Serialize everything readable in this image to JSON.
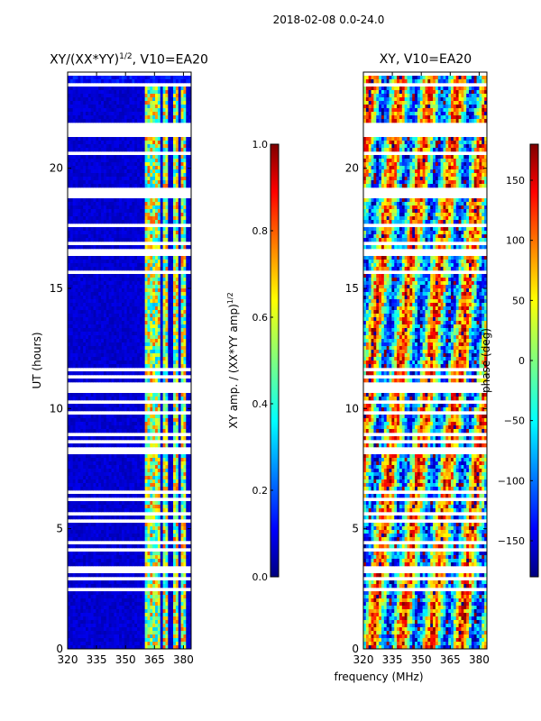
{
  "figure": {
    "title": "2018-02-08 0.0-24.0"
  },
  "chart_data": [
    {
      "type": "heatmap",
      "title": "XY/(XX*YY)",
      "title_power": "1/2",
      "title_suffix": ", V10=EA20",
      "xlabel": "",
      "ylabel": "UT (hours)",
      "xlim": [
        320,
        384
      ],
      "ylim": [
        0,
        24
      ],
      "xticks": [
        "320",
        "335",
        "350",
        "365",
        "380"
      ],
      "yticks": [
        "0",
        "5",
        "10",
        "15",
        "20"
      ],
      "colorbar": {
        "label": "XY amp. / (XX*YY amp)",
        "label_power": "1/2",
        "range": [
          0.0,
          1.0
        ],
        "ticks": [
          "0.0",
          "0.2",
          "0.4",
          "0.6",
          "0.8",
          "1.0"
        ],
        "colormap": "jet"
      },
      "description_values": {
        "background_level": 0.05,
        "band_centers_mhz": [
          362,
          366,
          371,
          376,
          380
        ],
        "band_level_range": [
          0.3,
          0.8
        ]
      }
    },
    {
      "type": "heatmap",
      "title": "XY, V10=EA20",
      "xlabel": "frequency (MHz)",
      "ylabel": "",
      "xlim": [
        320,
        384
      ],
      "ylim": [
        0,
        24
      ],
      "xticks": [
        "320",
        "335",
        "350",
        "365",
        "380"
      ],
      "yticks": [
        "0",
        "5",
        "10",
        "15",
        "20"
      ],
      "colorbar": {
        "label": "phase (deg)",
        "range": [
          -180,
          180
        ],
        "ticks": [
          "−150",
          "−100",
          "−50",
          "0",
          "50",
          "100",
          "150"
        ],
        "tick_values": [
          -150,
          -100,
          -50,
          0,
          50,
          100,
          150
        ],
        "colormap": "jet"
      }
    }
  ],
  "colors": {
    "jet_stops": [
      "#00007f",
      "#0000ff",
      "#00ffff",
      "#7fff7f",
      "#ffff00",
      "#ff0000",
      "#7f0000"
    ]
  }
}
